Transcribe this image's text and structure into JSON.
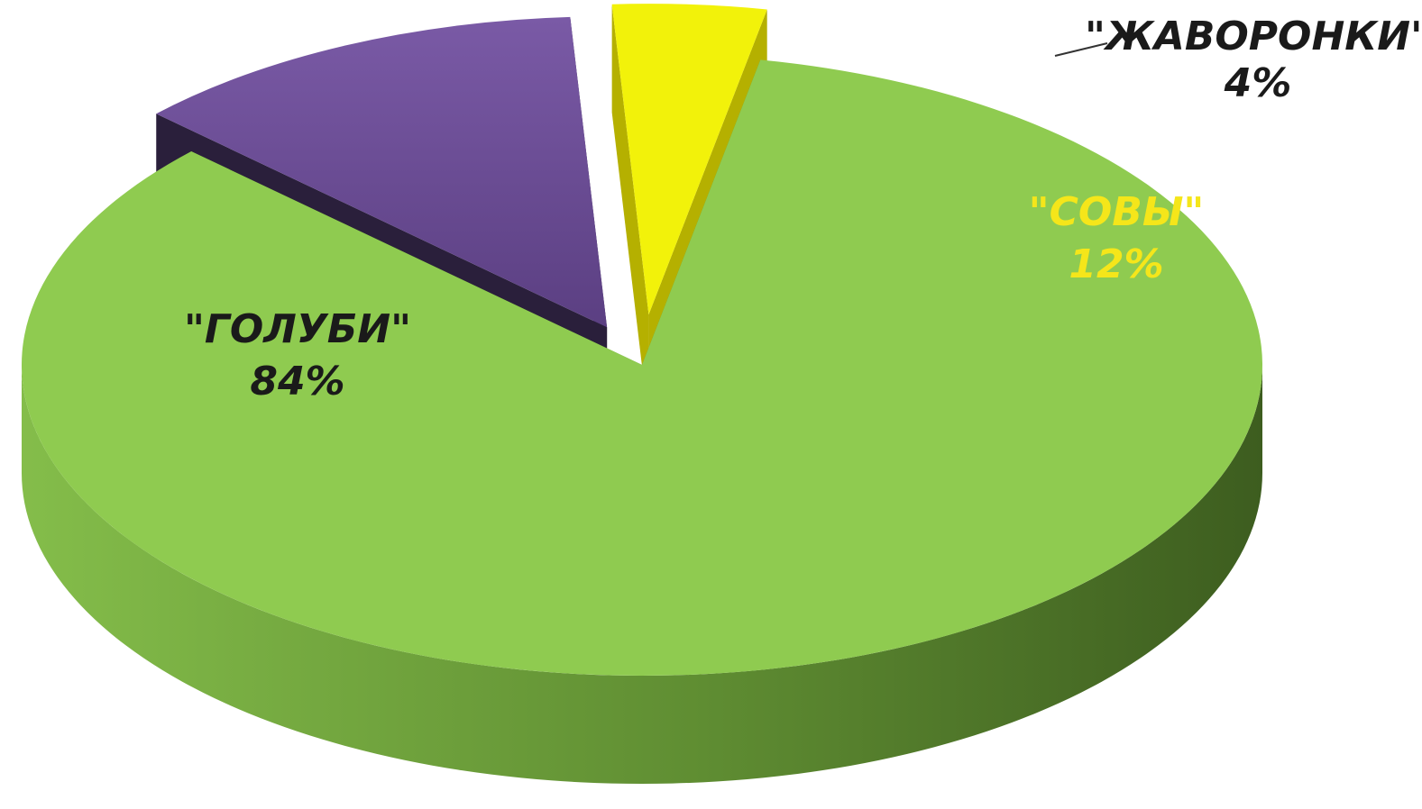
{
  "chart_data": {
    "type": "pie",
    "title": "",
    "slices": [
      {
        "label": "\"ГОЛУБИ\"",
        "value": 84,
        "value_label": "84%",
        "color": "#8fcb50",
        "side_color": "#5f8f30",
        "label_color": "#1a1a1a"
      },
      {
        "label": "\"СОВЫ\"",
        "value": 12,
        "value_label": "12%",
        "color": "#6b4c93",
        "side_color": "#2a1f3b",
        "label_color": "#f5e61a"
      },
      {
        "label": "\"ЖАВОРОНКИ\"",
        "value": 4,
        "value_label": "4%",
        "color": "#f2f20a",
        "side_color": "#b5b000",
        "label_color": "#1a1a1a"
      }
    ],
    "legend": "none",
    "style": "3d-exploded"
  }
}
